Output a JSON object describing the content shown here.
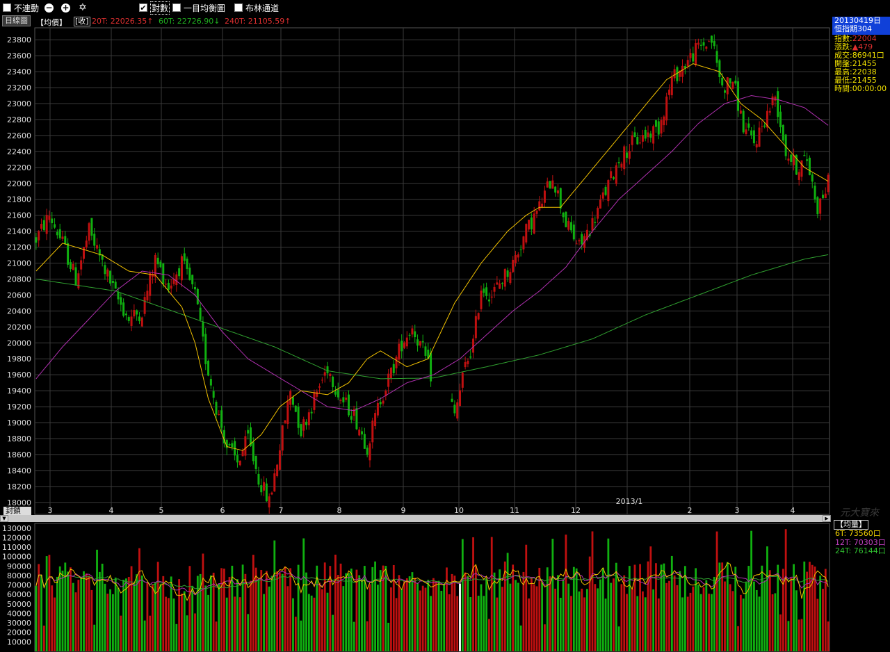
{
  "toolbar": {
    "lock_label": "不連動",
    "zoom_out_icon": "minus-circle-icon",
    "zoom_in_icon": "plus-circle-icon",
    "settings_icon": "gear-icon",
    "check2_label": "對數",
    "balance_label": "一目均衡圖",
    "bollinger_label": "布林通道"
  },
  "infobar": {
    "tab_label": "日線圖",
    "avg_label": "【均價】",
    "close_label": "[收]",
    "ma20": "20T: 22026.35↑",
    "ma60": "60T: 22726.90↓",
    "ma240": "240T: 21105.59↑"
  },
  "side": {
    "date": "20130419日",
    "name": "恒指期304",
    "rows": [
      {
        "label": "指數:",
        "value": "22004"
      },
      {
        "label": "漲跌:",
        "value": "▲479"
      },
      {
        "label": "成交:",
        "value": "86941口"
      },
      {
        "label": "開盤:",
        "value": "21455"
      },
      {
        "label": "最高:",
        "value": "22038"
      },
      {
        "label": "最低:",
        "value": "21455"
      },
      {
        "label": "時間:",
        "value": "00:00:00"
      }
    ]
  },
  "volume_side": {
    "header": "【均量】",
    "rows": [
      {
        "label": "6T: 73560口",
        "color": "#f0d000"
      },
      {
        "label": "12T: 70303口",
        "color": "#c040c0"
      },
      {
        "label": "24T: 76144口",
        "color": "#30c030"
      }
    ]
  },
  "watermark": "元大寶來",
  "colors": {
    "up": "#c01010",
    "down": "#10b010",
    "ma20": "#f0c000",
    "ma60": "#b030b0",
    "ma240": "#30a030",
    "grid": "#3a3a3a"
  },
  "chart_data": [
    {
      "type": "candlestick",
      "title": "",
      "xlabel": "",
      "ylabel": "",
      "ylim": [
        17850,
        23950
      ],
      "y_ticks": [
        18000,
        18200,
        18400,
        18600,
        18800,
        19000,
        19200,
        19400,
        19600,
        19800,
        20000,
        20200,
        20400,
        20600,
        20800,
        21000,
        21200,
        21400,
        21600,
        21800,
        22000,
        22200,
        22400,
        22600,
        22800,
        23000,
        23200,
        23400,
        23600,
        23800
      ],
      "x_tick_labels": [
        "3",
        "4",
        "5",
        "6",
        "7",
        "8",
        "9",
        "10",
        "11",
        "12",
        "2013/1",
        "2",
        "3",
        "4"
      ],
      "corner_label": "封鎖",
      "series_ma20_keypoints": [
        [
          0,
          20900
        ],
        [
          10,
          21250
        ],
        [
          25,
          21100
        ],
        [
          35,
          20900
        ],
        [
          45,
          20850
        ],
        [
          55,
          20450
        ],
        [
          60,
          20000
        ],
        [
          65,
          19300
        ],
        [
          72,
          18700
        ],
        [
          78,
          18650
        ],
        [
          85,
          18850
        ],
        [
          92,
          19200
        ],
        [
          100,
          19400
        ],
        [
          110,
          19350
        ],
        [
          118,
          19500
        ],
        [
          125,
          19800
        ],
        [
          130,
          19900
        ],
        [
          140,
          19700
        ],
        [
          148,
          19800
        ],
        [
          158,
          20500
        ],
        [
          168,
          21000
        ],
        [
          178,
          21400
        ],
        [
          185,
          21600
        ],
        [
          190,
          21700
        ],
        [
          198,
          21700
        ],
        [
          208,
          22100
        ],
        [
          218,
          22500
        ],
        [
          228,
          22900
        ],
        [
          238,
          23300
        ],
        [
          248,
          23500
        ],
        [
          258,
          23400
        ],
        [
          266,
          23000
        ],
        [
          274,
          22800
        ],
        [
          282,
          22500
        ],
        [
          290,
          22200
        ],
        [
          299,
          22026
        ]
      ],
      "series_ma60_keypoints": [
        [
          0,
          19550
        ],
        [
          10,
          19950
        ],
        [
          20,
          20300
        ],
        [
          30,
          20650
        ],
        [
          40,
          20900
        ],
        [
          50,
          20850
        ],
        [
          60,
          20600
        ],
        [
          70,
          20150
        ],
        [
          80,
          19800
        ],
        [
          90,
          19600
        ],
        [
          100,
          19400
        ],
        [
          110,
          19200
        ],
        [
          120,
          19150
        ],
        [
          130,
          19300
        ],
        [
          140,
          19500
        ],
        [
          150,
          19600
        ],
        [
          160,
          19800
        ],
        [
          170,
          20100
        ],
        [
          180,
          20400
        ],
        [
          190,
          20650
        ],
        [
          200,
          20950
        ],
        [
          210,
          21400
        ],
        [
          220,
          21800
        ],
        [
          230,
          22100
        ],
        [
          240,
          22400
        ],
        [
          250,
          22750
        ],
        [
          260,
          23000
        ],
        [
          270,
          23100
        ],
        [
          280,
          23050
        ],
        [
          290,
          22950
        ],
        [
          299,
          22727
        ]
      ],
      "series_ma240_keypoints": [
        [
          0,
          20800
        ],
        [
          30,
          20650
        ],
        [
          60,
          20300
        ],
        [
          90,
          19950
        ],
        [
          110,
          19650
        ],
        [
          130,
          19550
        ],
        [
          150,
          19560
        ],
        [
          170,
          19700
        ],
        [
          190,
          19850
        ],
        [
          210,
          20050
        ],
        [
          230,
          20350
        ],
        [
          250,
          20600
        ],
        [
          270,
          20850
        ],
        [
          290,
          21050
        ],
        [
          299,
          21106
        ]
      ],
      "price_keypoints": [
        [
          0,
          21300
        ],
        [
          5,
          21600
        ],
        [
          10,
          21250
        ],
        [
          15,
          20800
        ],
        [
          20,
          21400
        ],
        [
          25,
          21000
        ],
        [
          30,
          20600
        ],
        [
          35,
          20300
        ],
        [
          40,
          20400
        ],
        [
          45,
          21050
        ],
        [
          50,
          20700
        ],
        [
          55,
          21000
        ],
        [
          60,
          20600
        ],
        [
          64,
          19800
        ],
        [
          68,
          19200
        ],
        [
          72,
          18700
        ],
        [
          76,
          18500
        ],
        [
          80,
          18800
        ],
        [
          84,
          18300
        ],
        [
          88,
          18000
        ],
        [
          92,
          18700
        ],
        [
          96,
          19400
        ],
        [
          100,
          18900
        ],
        [
          105,
          19300
        ],
        [
          110,
          19700
        ],
        [
          115,
          19300
        ],
        [
          120,
          19100
        ],
        [
          125,
          18700
        ],
        [
          130,
          19300
        ],
        [
          135,
          19700
        ],
        [
          138,
          20000
        ],
        [
          142,
          20200
        ],
        [
          146,
          19900
        ],
        [
          150,
          19500
        ],
        [
          155,
          19400
        ],
        [
          158,
          19100
        ],
        [
          162,
          19700
        ],
        [
          165,
          20000
        ],
        [
          168,
          20700
        ],
        [
          172,
          20600
        ],
        [
          176,
          20800
        ],
        [
          180,
          21000
        ],
        [
          185,
          21400
        ],
        [
          190,
          21700
        ],
        [
          195,
          22100
        ],
        [
          200,
          21500
        ],
        [
          205,
          21200
        ],
        [
          210,
          21500
        ],
        [
          215,
          21900
        ],
        [
          220,
          22300
        ],
        [
          225,
          22500
        ],
        [
          230,
          22600
        ],
        [
          235,
          22700
        ],
        [
          240,
          23300
        ],
        [
          245,
          23500
        ],
        [
          250,
          23700
        ],
        [
          255,
          23800
        ],
        [
          259,
          23200
        ],
        [
          263,
          23300
        ],
        [
          267,
          22700
        ],
        [
          271,
          22500
        ],
        [
          275,
          22800
        ],
        [
          279,
          23100
        ],
        [
          283,
          22400
        ],
        [
          287,
          22200
        ],
        [
          291,
          22300
        ],
        [
          295,
          21700
        ],
        [
          299,
          22004
        ]
      ],
      "n_bars": 300
    },
    {
      "type": "bar",
      "title": "",
      "ylim": [
        0,
        135000
      ],
      "y_ticks": [
        10000,
        20000,
        30000,
        40000,
        50000,
        60000,
        70000,
        80000,
        90000,
        100000,
        110000,
        120000,
        130000
      ],
      "spike_indices": [
        165,
        172,
        200,
        210,
        257,
        270,
        283
      ],
      "highlight_index": 160
    }
  ]
}
